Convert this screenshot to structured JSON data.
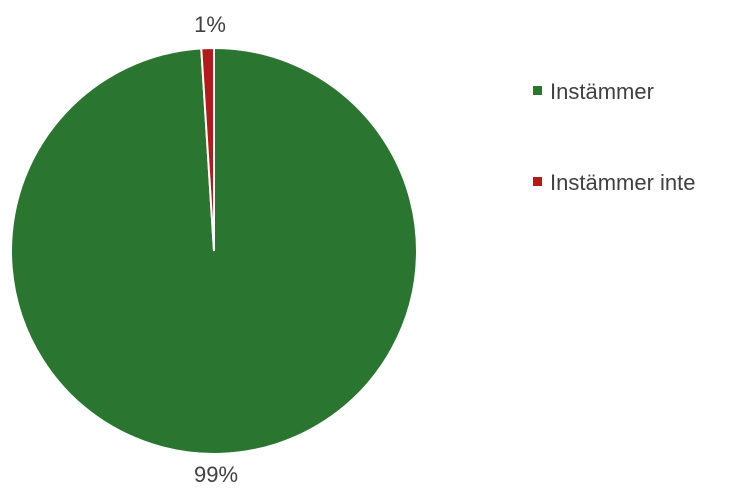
{
  "chart_data": {
    "type": "pie",
    "title": "",
    "slices": [
      {
        "label": "Instämmer",
        "value": 99,
        "display": "99%",
        "color": "#2a7631"
      },
      {
        "label": "Instämmer inte",
        "value": 1,
        "display": "1%",
        "color": "#b31b1b"
      }
    ],
    "legend_position": "right",
    "slice_border_color": "#ffffff"
  }
}
